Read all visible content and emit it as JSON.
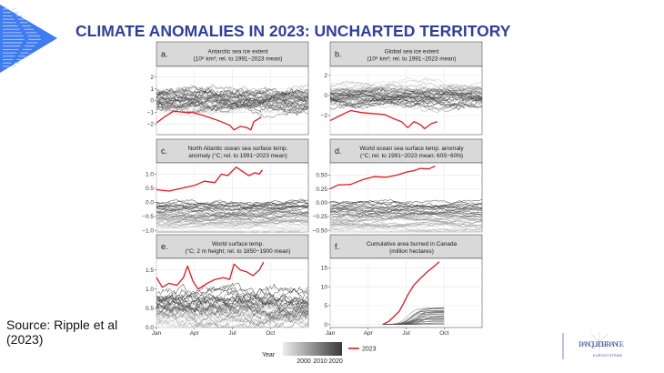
{
  "slide": {
    "title": "CLIMATE ANOMALIES IN 2023: UNCHARTED TERRITORY",
    "source": [
      "Source: Ripple et al",
      "(2023)"
    ],
    "logo": {
      "name": "BANQUE DE FRANCE",
      "subtitle": "EUROSYSTÈME"
    },
    "colors": {
      "title": "#2e3f9e",
      "triangle": "#3f7cf0",
      "highlight": "#e0191e"
    }
  },
  "chart_data": [
    {
      "type": "line",
      "letter": "a.",
      "title": [
        "Antarctic sea ice extent",
        "(10⁶ km²; rel. to 1991−2023 mean)"
      ],
      "ylim": [
        -2.9,
        2.9
      ],
      "yticks": [
        {
          "v": 2,
          "l": "2"
        },
        {
          "v": 1,
          "l": "1"
        },
        {
          "v": 0,
          "l": "0"
        },
        {
          "v": -1,
          "l": "−1"
        },
        {
          "v": -2,
          "l": "−2"
        }
      ],
      "series_2023": [
        [
          "01-01",
          -1.9
        ],
        [
          "01-20",
          -1.4
        ],
        [
          "02-12",
          -0.9
        ],
        [
          "03-05",
          -1.0
        ],
        [
          "03-25",
          -1.0
        ],
        [
          "04-25",
          -1.3
        ],
        [
          "05-20",
          -1.6
        ],
        [
          "06-05",
          -1.8
        ],
        [
          "06-25",
          -2.1
        ],
        [
          "07-05",
          -2.5
        ],
        [
          "07-20",
          -2.2
        ],
        [
          "08-05",
          -2.3
        ],
        [
          "08-15",
          -2.5
        ],
        [
          "08-22",
          -1.8
        ],
        [
          "09-10",
          -1.4
        ]
      ]
    },
    {
      "type": "line",
      "letter": "b.",
      "title": [
        "Global sea ice extent",
        "(10⁶ km²; rel. to 1991−2023 mean)"
      ],
      "ylim": [
        -3.9,
        2.9
      ],
      "yticks": [
        {
          "v": 2,
          "l": "2"
        },
        {
          "v": 0,
          "l": "0"
        },
        {
          "v": -2,
          "l": "−2"
        }
      ],
      "series_2023": [
        [
          "01-01",
          -2.5
        ],
        [
          "01-25",
          -2.0
        ],
        [
          "02-20",
          -1.5
        ],
        [
          "03-15",
          -1.7
        ],
        [
          "04-10",
          -1.8
        ],
        [
          "05-10",
          -1.9
        ],
        [
          "06-01",
          -2.3
        ],
        [
          "06-20",
          -2.6
        ],
        [
          "07-05",
          -3.2
        ],
        [
          "07-20",
          -2.6
        ],
        [
          "08-05",
          -2.9
        ],
        [
          "08-15",
          -3.3
        ],
        [
          "09-01",
          -2.8
        ],
        [
          "09-15",
          -2.6
        ]
      ]
    },
    {
      "type": "line",
      "letter": "c.",
      "title": [
        "North Atlantic ocean sea surface temp.",
        "anomaly (°C; rel. to 1991−2023 mean)"
      ],
      "ylim": [
        -1.05,
        1.4
      ],
      "yticks": [
        {
          "v": 1,
          "l": "1.0"
        },
        {
          "v": 0.5,
          "l": "0.5"
        },
        {
          "v": 0,
          "l": "0.0"
        },
        {
          "v": -0.5,
          "l": "−0.5"
        },
        {
          "v": -1,
          "l": "−1.0"
        }
      ],
      "series_2023": [
        [
          "01-01",
          0.45
        ],
        [
          "02-01",
          0.4
        ],
        [
          "03-01",
          0.5
        ],
        [
          "04-01",
          0.6
        ],
        [
          "04-25",
          0.75
        ],
        [
          "05-20",
          0.7
        ],
        [
          "06-05",
          1.0
        ],
        [
          "06-20",
          0.95
        ],
        [
          "07-10",
          1.25
        ],
        [
          "07-25",
          1.1
        ],
        [
          "08-10",
          0.95
        ],
        [
          "08-25",
          1.05
        ],
        [
          "09-05",
          1.0
        ],
        [
          "09-12",
          1.15
        ]
      ]
    },
    {
      "type": "line",
      "letter": "d.",
      "title": [
        "World ocean sea surface temp. anomaly",
        "(°C; rel. to 1991−2023 mean; 60S−60N)"
      ],
      "ylim": [
        -0.53,
        0.72
      ],
      "yticks": [
        {
          "v": 0.5,
          "l": "0.50"
        },
        {
          "v": 0.25,
          "l": "0.25"
        },
        {
          "v": 0,
          "l": "0.00"
        },
        {
          "v": -0.25,
          "l": "−0.25"
        },
        {
          "v": -0.5,
          "l": "−0.50"
        }
      ],
      "series_2023": [
        [
          "01-01",
          0.25
        ],
        [
          "01-20",
          0.32
        ],
        [
          "02-20",
          0.33
        ],
        [
          "03-20",
          0.42
        ],
        [
          "04-15",
          0.47
        ],
        [
          "05-15",
          0.46
        ],
        [
          "06-10",
          0.5
        ],
        [
          "07-01",
          0.55
        ],
        [
          "07-20",
          0.58
        ],
        [
          "08-05",
          0.62
        ],
        [
          "08-25",
          0.61
        ],
        [
          "09-10",
          0.66
        ]
      ]
    },
    {
      "type": "line",
      "letter": "e.",
      "title": [
        "World surface temp.",
        "(°C; 2 m height; rel. to 1850−1900 mean)"
      ],
      "ylim": [
        0,
        1.8
      ],
      "yticks": [
        {
          "v": 1.5,
          "l": "1.5"
        },
        {
          "v": 1,
          "l": "1.0"
        },
        {
          "v": 0.5,
          "l": "0.5"
        },
        {
          "v": 0,
          "l": "0.0"
        }
      ],
      "series_2023": [
        [
          "01-01",
          1.3
        ],
        [
          "01-15",
          1.05
        ],
        [
          "02-01",
          1.15
        ],
        [
          "02-20",
          1.1
        ],
        [
          "03-05",
          1.3
        ],
        [
          "03-15",
          1.6
        ],
        [
          "03-28",
          1.2
        ],
        [
          "04-10",
          1.0
        ],
        [
          "05-01",
          1.15
        ],
        [
          "05-20",
          1.25
        ],
        [
          "06-10",
          1.3
        ],
        [
          "06-25",
          1.25
        ],
        [
          "07-05",
          1.65
        ],
        [
          "07-20",
          1.5
        ],
        [
          "08-05",
          1.45
        ],
        [
          "08-20",
          1.35
        ],
        [
          "09-05",
          1.5
        ],
        [
          "09-15",
          1.7
        ]
      ]
    },
    {
      "type": "line",
      "letter": "f.",
      "title": [
        "Cumulative area burned in Canada",
        "(million hectares)"
      ],
      "ylim": [
        -0.8,
        17.5
      ],
      "yticks": [
        {
          "v": 15,
          "l": "15"
        },
        {
          "v": 10,
          "l": "10"
        },
        {
          "v": 5,
          "l": "5"
        },
        {
          "v": 0,
          "l": "0"
        }
      ],
      "series_2023": [
        [
          "05-05",
          0
        ],
        [
          "05-20",
          0.8
        ],
        [
          "06-01",
          2.0
        ],
        [
          "06-15",
          3.5
        ],
        [
          "06-25",
          5.5
        ],
        [
          "07-05",
          7.8
        ],
        [
          "07-20",
          10.5
        ],
        [
          "08-05",
          12.2
        ],
        [
          "08-20",
          13.8
        ],
        [
          "09-05",
          15.2
        ],
        [
          "09-20",
          16.6
        ]
      ]
    }
  ],
  "x_axis": {
    "ticks": [
      {
        "m": 0,
        "l": "Jan"
      },
      {
        "m": 3,
        "l": "Apr"
      },
      {
        "m": 6,
        "l": "Jul"
      },
      {
        "m": 9,
        "l": "Oct"
      }
    ]
  },
  "legend": {
    "title": "Year",
    "gradient_labels": [
      "2000",
      "2010",
      "2020"
    ],
    "highlight_label": "2023",
    "gradient_colors": [
      "#e8e8e8",
      "#3a3a3a"
    ]
  }
}
